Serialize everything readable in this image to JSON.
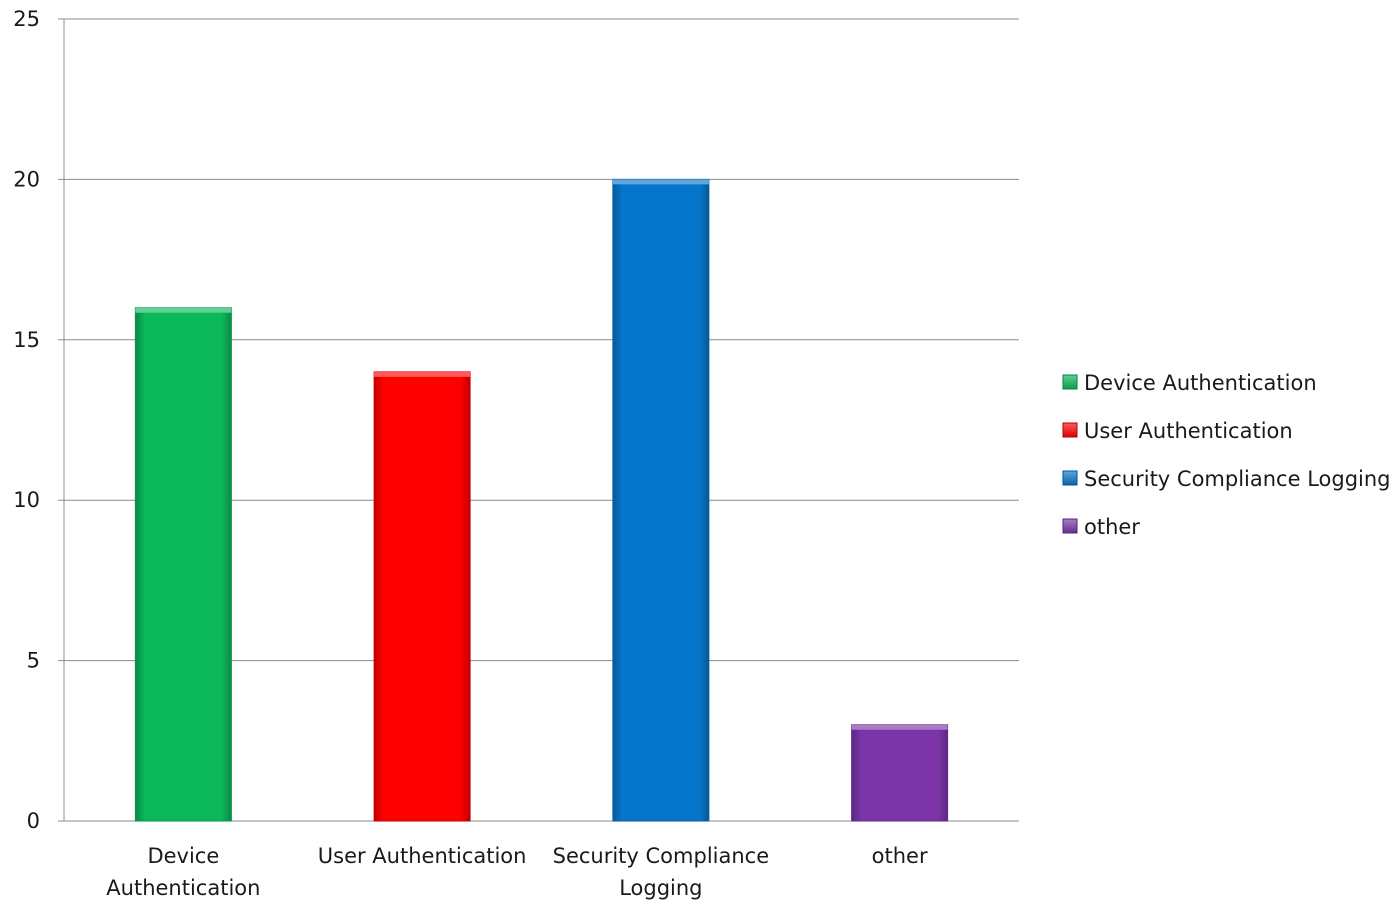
{
  "chart_data": {
    "type": "bar",
    "title": "",
    "xlabel": "",
    "ylabel": "",
    "ylim": [
      0,
      25
    ],
    "yticks": [
      0,
      5,
      10,
      15,
      20,
      25
    ],
    "grid": true,
    "legend_position": "right",
    "categories": [
      [
        "Device",
        "Authentication"
      ],
      [
        "User Authentication"
      ],
      [
        "Security Compliance",
        "Logging"
      ],
      [
        "other"
      ]
    ],
    "series": [
      {
        "name": "Device Authentication",
        "values": [
          16,
          null,
          null,
          null
        ],
        "color": "#0bb85a"
      },
      {
        "name": "User Authentication",
        "values": [
          null,
          14,
          null,
          null
        ],
        "color": "#ff0000"
      },
      {
        "name": "Security Compliance Logging",
        "values": [
          null,
          null,
          20,
          null
        ],
        "color": "#0676cc"
      },
      {
        "name": "other",
        "values": [
          null,
          null,
          null,
          3
        ],
        "color": "#7b35a8"
      }
    ]
  }
}
